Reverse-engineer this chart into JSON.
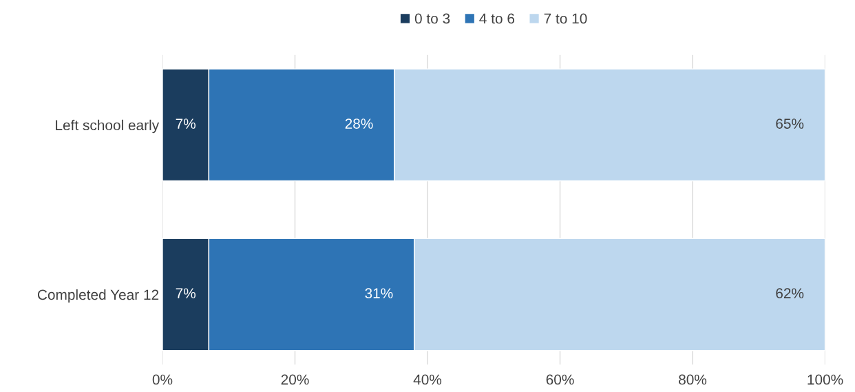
{
  "chart_data": {
    "type": "bar",
    "orientation": "horizontal",
    "stacked": true,
    "categories": [
      "Left school early",
      "Completed Year 12"
    ],
    "series": [
      {
        "name": "0 to 3",
        "color": "#1b3d5e",
        "values": [
          7,
          7
        ]
      },
      {
        "name": "4 to 6",
        "color": "#2e74b5",
        "values": [
          28,
          31
        ]
      },
      {
        "name": "7 to 10",
        "color": "#bdd7ee",
        "values": [
          65,
          62
        ]
      }
    ],
    "xlim": [
      0,
      100
    ],
    "xticks": [
      {
        "value": 0,
        "label": "0%"
      },
      {
        "value": 20,
        "label": "20%"
      },
      {
        "value": 40,
        "label": "40%"
      },
      {
        "value": 60,
        "label": "60%"
      },
      {
        "value": 80,
        "label": "80%"
      },
      {
        "value": 100,
        "label": "100%"
      }
    ],
    "value_labels": [
      [
        "7%",
        "7%"
      ],
      [
        "28%",
        "31%"
      ],
      [
        "65%",
        "62%"
      ]
    ],
    "grid": "x",
    "legend": "top"
  }
}
